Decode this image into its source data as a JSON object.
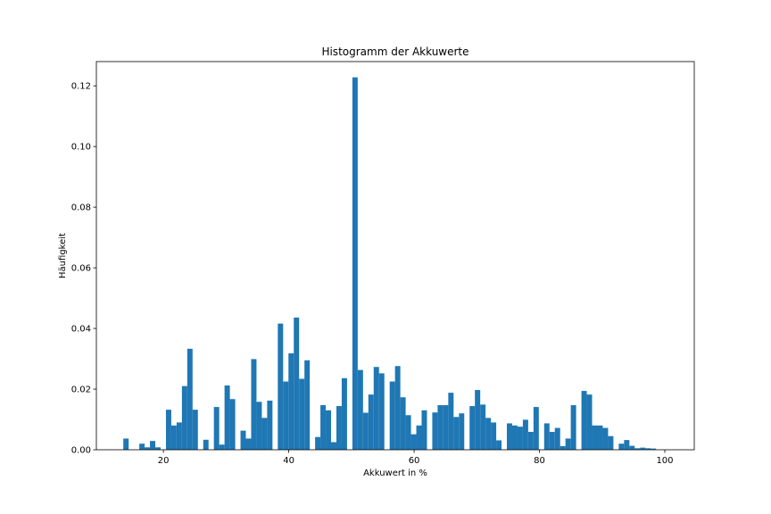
{
  "chart_data": {
    "type": "bar",
    "title": "Histogramm der Akkuwerte",
    "xlabel": "Akkuwert in %",
    "ylabel": "Häufigkeit",
    "xlim": [
      9.3,
      104.7
    ],
    "ylim": [
      0,
      0.128
    ],
    "xticks": [
      20,
      40,
      60,
      80,
      100
    ],
    "yticks": [
      0.0,
      0.02,
      0.04,
      0.06,
      0.08,
      0.1,
      0.12
    ],
    "ytick_labels": [
      "0.00",
      "0.02",
      "0.04",
      "0.06",
      "0.08",
      "0.10",
      "0.12"
    ],
    "bin_start": 13.6,
    "bin_width": 0.85,
    "color": "#1f77b4",
    "values": [
      0.0037,
      0,
      0,
      0.002,
      0.0008,
      0.0029,
      0.0008,
      0,
      0.0132,
      0.008,
      0.009,
      0.021,
      0.0333,
      0.0132,
      0,
      0.0033,
      0,
      0.0141,
      0.0017,
      0.0212,
      0.0167,
      0,
      0.0063,
      0.0037,
      0.0299,
      0.0158,
      0.0105,
      0.0162,
      0,
      0.0416,
      0.0225,
      0.0318,
      0.0436,
      0.0234,
      0.0295,
      0,
      0.0042,
      0.0147,
      0.013,
      0.0025,
      0.0144,
      0.0236,
      0,
      0.1228,
      0.0263,
      0.0122,
      0.0182,
      0.0273,
      0.0252,
      0,
      0.0225,
      0.0276,
      0.0173,
      0.0114,
      0.0051,
      0.008,
      0.013,
      0,
      0.0123,
      0.0147,
      0.0147,
      0.0188,
      0.0108,
      0.012,
      0,
      0.0144,
      0.0197,
      0.0149,
      0.0105,
      0.009,
      0.0031,
      0,
      0.0087,
      0.008,
      0.0076,
      0.0099,
      0.0059,
      0.0141,
      0,
      0.0087,
      0.0059,
      0.0072,
      0.0012,
      0.0037,
      0.0147,
      0,
      0.0194,
      0.0182,
      0.008,
      0.008,
      0.0072,
      0.0045,
      0,
      0.002,
      0.0032,
      0.0013,
      0.0005,
      0.0007,
      0.0005,
      0.0004
    ]
  }
}
